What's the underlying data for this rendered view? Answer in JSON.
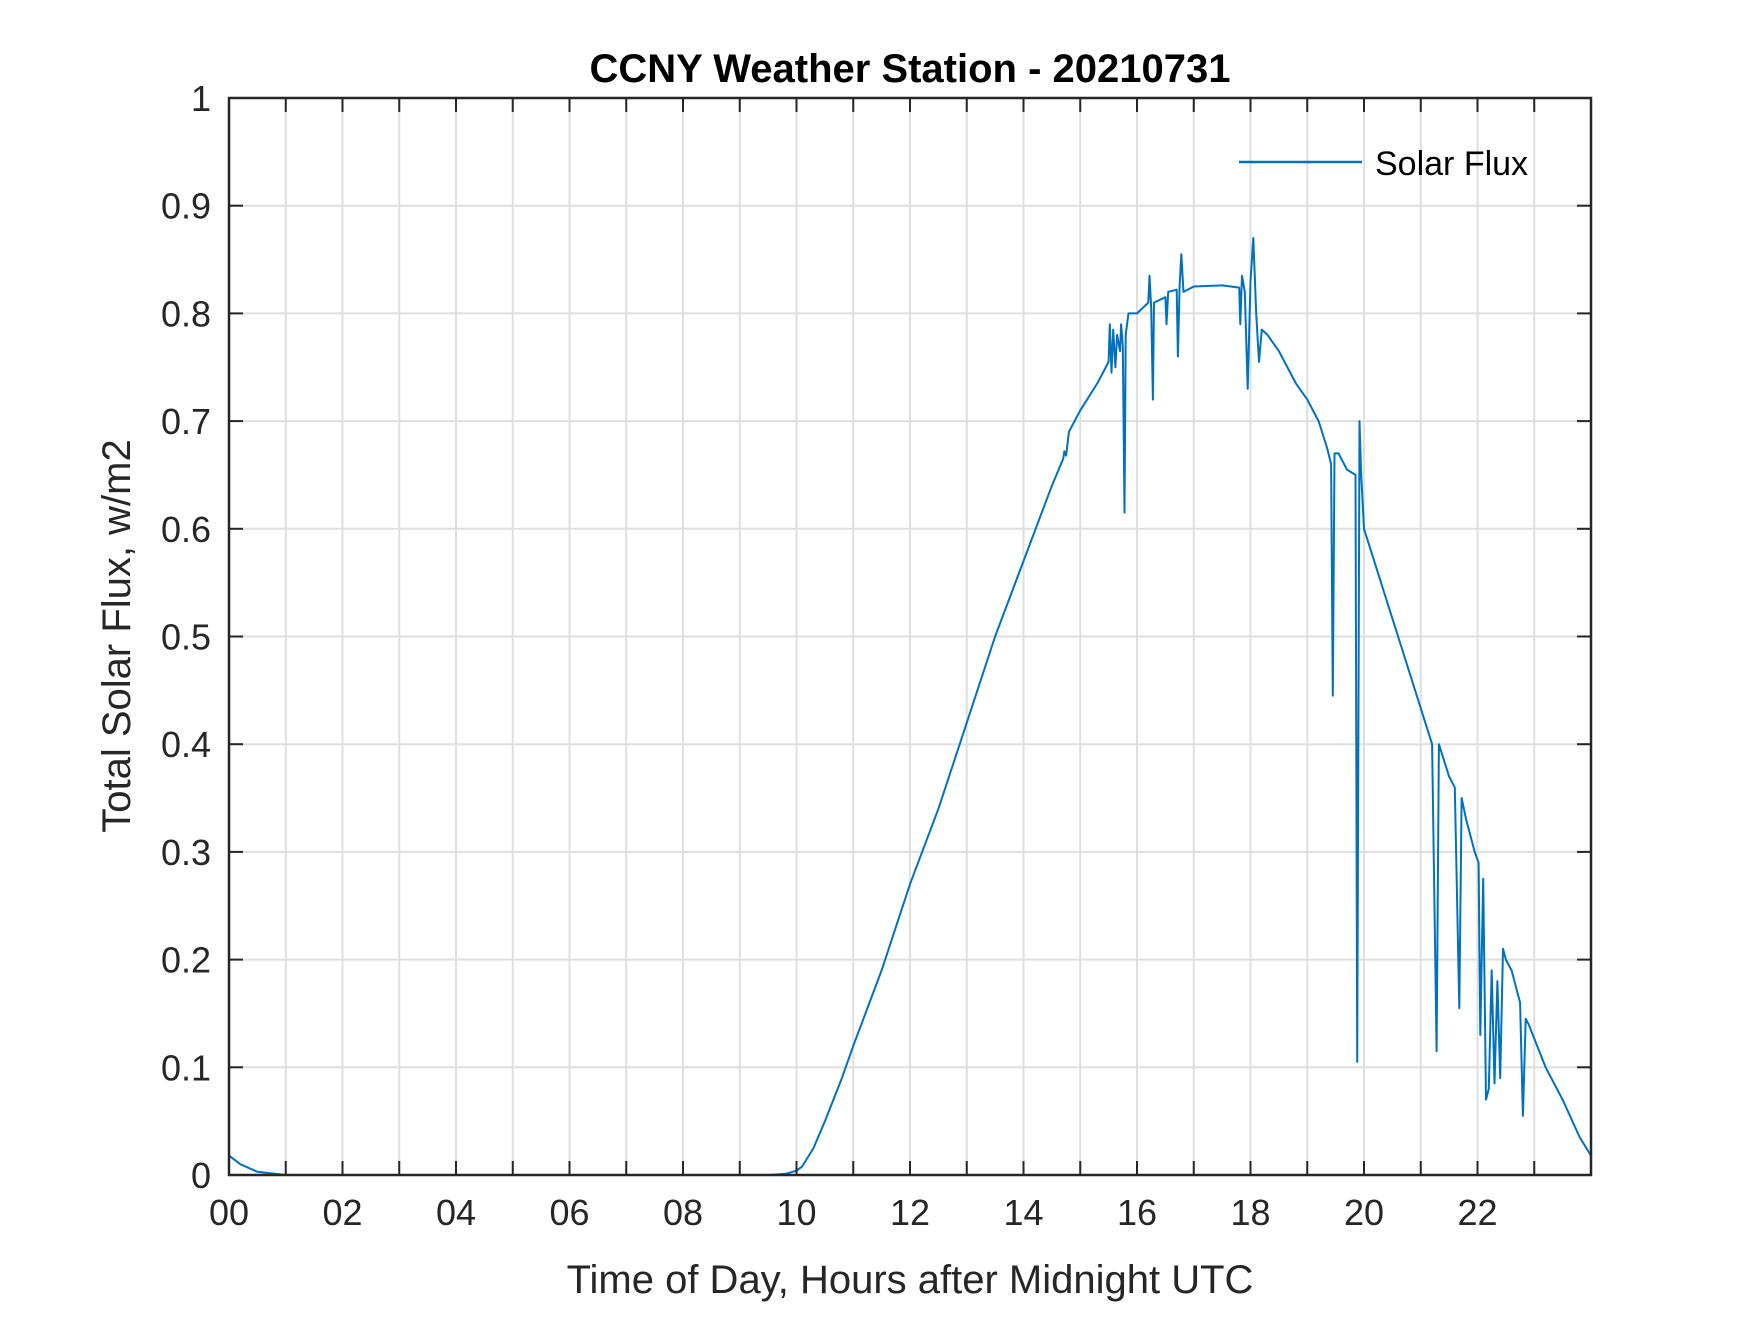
{
  "chart_data": {
    "type": "line",
    "title": "CCNY Weather Station - 20210731",
    "xlabel": "Time of Day, Hours after Midnight UTC",
    "ylabel": "Total Solar Flux, w/m2",
    "xlim": [
      0,
      24
    ],
    "ylim": [
      0,
      1
    ],
    "grid": true,
    "legend_position": "top-right",
    "x_ticks": [
      0,
      2,
      4,
      6,
      8,
      10,
      12,
      14,
      16,
      18,
      20,
      22
    ],
    "x_tick_labels": [
      "00",
      "02",
      "04",
      "06",
      "08",
      "10",
      "12",
      "14",
      "16",
      "18",
      "20",
      "22"
    ],
    "y_ticks": [
      0,
      0.1,
      0.2,
      0.3,
      0.4,
      0.5,
      0.6,
      0.7,
      0.8,
      0.9,
      1
    ],
    "y_tick_labels": [
      "0",
      "0.1",
      "0.2",
      "0.3",
      "0.4",
      "0.5",
      "0.6",
      "0.7",
      "0.8",
      "0.9",
      "1"
    ],
    "series": [
      {
        "name": "Solar Flux",
        "color": "#0072BD",
        "points": [
          [
            0,
            0.018
          ],
          [
            0.2,
            0.01
          ],
          [
            0.5,
            0.003
          ],
          [
            1,
            0
          ],
          [
            9.5,
            0
          ],
          [
            9.8,
            0.001
          ],
          [
            10,
            0.004
          ],
          [
            10.1,
            0.008
          ],
          [
            10.3,
            0.025
          ],
          [
            10.5,
            0.05
          ],
          [
            10.8,
            0.09
          ],
          [
            11,
            0.12
          ],
          [
            11.5,
            0.19
          ],
          [
            12,
            0.27
          ],
          [
            12.5,
            0.34
          ],
          [
            13,
            0.42
          ],
          [
            13.5,
            0.5
          ],
          [
            14,
            0.57
          ],
          [
            14.5,
            0.64
          ],
          [
            14.7,
            0.665
          ],
          [
            14.72,
            0.672
          ],
          [
            14.75,
            0.668
          ],
          [
            14.8,
            0.69
          ],
          [
            15,
            0.71
          ],
          [
            15.3,
            0.735
          ],
          [
            15.5,
            0.755
          ],
          [
            15.52,
            0.79
          ],
          [
            15.55,
            0.745
          ],
          [
            15.58,
            0.785
          ],
          [
            15.62,
            0.75
          ],
          [
            15.65,
            0.78
          ],
          [
            15.7,
            0.765
          ],
          [
            15.72,
            0.79
          ],
          [
            15.75,
            0.77
          ],
          [
            15.78,
            0.615
          ],
          [
            15.8,
            0.78
          ],
          [
            15.85,
            0.8
          ],
          [
            16,
            0.8
          ],
          [
            16.2,
            0.81
          ],
          [
            16.22,
            0.835
          ],
          [
            16.25,
            0.805
          ],
          [
            16.28,
            0.72
          ],
          [
            16.3,
            0.81
          ],
          [
            16.5,
            0.815
          ],
          [
            16.52,
            0.79
          ],
          [
            16.55,
            0.82
          ],
          [
            16.7,
            0.822
          ],
          [
            16.72,
            0.76
          ],
          [
            16.75,
            0.825
          ],
          [
            16.78,
            0.855
          ],
          [
            16.82,
            0.82
          ],
          [
            17,
            0.825
          ],
          [
            17.5,
            0.826
          ],
          [
            17.8,
            0.824
          ],
          [
            17.82,
            0.79
          ],
          [
            17.85,
            0.835
          ],
          [
            17.9,
            0.82
          ],
          [
            17.95,
            0.73
          ],
          [
            18,
            0.83
          ],
          [
            18.05,
            0.87
          ],
          [
            18.1,
            0.8
          ],
          [
            18.15,
            0.755
          ],
          [
            18.2,
            0.785
          ],
          [
            18.3,
            0.78
          ],
          [
            18.5,
            0.765
          ],
          [
            18.8,
            0.735
          ],
          [
            19,
            0.72
          ],
          [
            19.2,
            0.7
          ],
          [
            19.35,
            0.675
          ],
          [
            19.42,
            0.66
          ],
          [
            19.45,
            0.445
          ],
          [
            19.48,
            0.67
          ],
          [
            19.55,
            0.67
          ],
          [
            19.7,
            0.655
          ],
          [
            19.85,
            0.65
          ],
          [
            19.88,
            0.105
          ],
          [
            19.92,
            0.7
          ],
          [
            19.95,
            0.65
          ],
          [
            20,
            0.6
          ],
          [
            20.3,
            0.55
          ],
          [
            20.6,
            0.5
          ],
          [
            20.9,
            0.45
          ],
          [
            21.2,
            0.4
          ],
          [
            21.28,
            0.115
          ],
          [
            21.32,
            0.4
          ],
          [
            21.5,
            0.37
          ],
          [
            21.6,
            0.36
          ],
          [
            21.68,
            0.155
          ],
          [
            21.72,
            0.35
          ],
          [
            21.8,
            0.33
          ],
          [
            21.95,
            0.3
          ],
          [
            22.02,
            0.29
          ],
          [
            22.05,
            0.13
          ],
          [
            22.1,
            0.275
          ],
          [
            22.15,
            0.07
          ],
          [
            22.2,
            0.08
          ],
          [
            22.25,
            0.19
          ],
          [
            22.3,
            0.085
          ],
          [
            22.35,
            0.18
          ],
          [
            22.4,
            0.09
          ],
          [
            22.45,
            0.21
          ],
          [
            22.5,
            0.2
          ],
          [
            22.6,
            0.19
          ],
          [
            22.75,
            0.16
          ],
          [
            22.8,
            0.055
          ],
          [
            22.85,
            0.145
          ],
          [
            22.9,
            0.14
          ],
          [
            23.2,
            0.1
          ],
          [
            23.5,
            0.07
          ],
          [
            23.8,
            0.035
          ],
          [
            24,
            0.018
          ]
        ]
      }
    ]
  }
}
